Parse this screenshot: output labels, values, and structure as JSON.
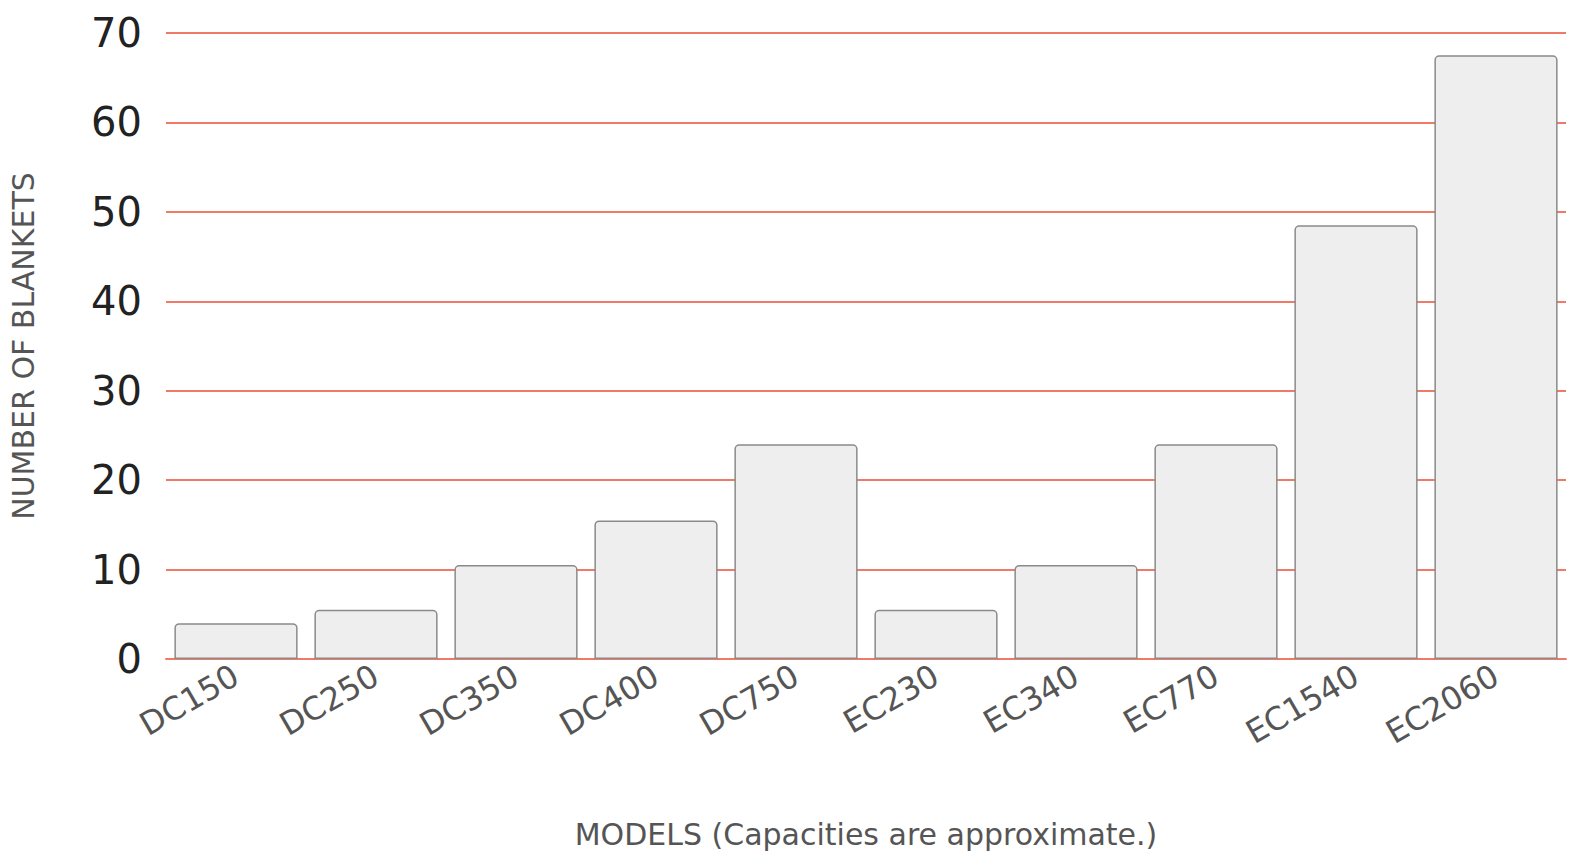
{
  "chart_data": {
    "type": "bar",
    "x_label": "MODELS (Capacities are approximate.)",
    "y_label": "NUMBER OF BLANKETS",
    "categories": [
      "DC150",
      "DC250",
      "DC350",
      "DC400",
      "DC750",
      "EC230",
      "EC340",
      "EC770",
      "EC1540",
      "EC2060"
    ],
    "values": [
      4,
      5.5,
      10.5,
      15.5,
      24,
      5.5,
      10.5,
      24,
      48.5,
      67.5
    ],
    "color": "#eeeeee",
    "ylim": [
      0,
      70
    ],
    "yticks": [
      0,
      10,
      20,
      30,
      40,
      50,
      60,
      70
    ],
    "grid": true
  }
}
